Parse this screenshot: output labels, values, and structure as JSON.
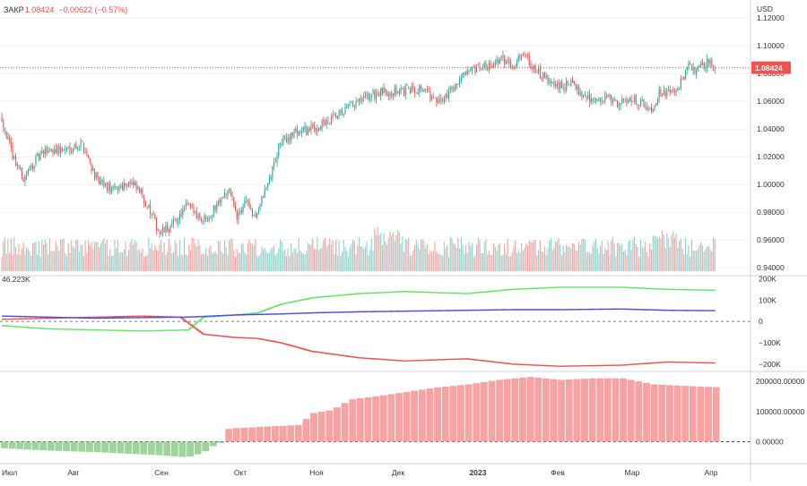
{
  "header": {
    "label": "ЗАКР",
    "close": "1.08424",
    "change": "−0.00622 (−0.57%)"
  },
  "colors": {
    "up": "#26a69a",
    "down": "#ef5350",
    "vol_up": "#8fd3cc",
    "vol_down": "#f5a3a3",
    "long_line": "#66e366",
    "short_line": "#ef5350",
    "oi_line": "#4b4be6",
    "net_positive": "#f7a3a3",
    "net_negative": "#9fd49f",
    "price_badge": "#ef5350",
    "axis_text": "#333333",
    "grid": "#f0f3fa"
  },
  "chart_data": [
    {
      "type": "candlestick",
      "currency": "USD",
      "x_labels": [
        "Июл",
        "Авг",
        "Сен",
        "Окт",
        "Ноя",
        "Дек",
        "2023",
        "Фев",
        "Мар",
        "Апр"
      ],
      "y_ticks": [
        "1.12000",
        "1.10000",
        "1.08000",
        "1.06000",
        "1.04000",
        "1.02000",
        "1.00000",
        "0.98000",
        "0.96000",
        "0.94000"
      ],
      "ylim": [
        0.935,
        1.133
      ],
      "last_price": "1.08424",
      "keypoints": [
        [
          0,
          1.048
        ],
        [
          6,
          1.024
        ],
        [
          14,
          1.004
        ],
        [
          22,
          1.018
        ],
        [
          30,
          1.025
        ],
        [
          40,
          1.025
        ],
        [
          52,
          1.03
        ],
        [
          62,
          1.002
        ],
        [
          72,
          0.996
        ],
        [
          82,
          1.002
        ],
        [
          90,
          0.994
        ],
        [
          96,
          0.98
        ],
        [
          102,
          0.965
        ],
        [
          110,
          0.97
        ],
        [
          120,
          0.985
        ],
        [
          130,
          0.975
        ],
        [
          136,
          0.98
        ],
        [
          142,
          0.992
        ],
        [
          148,
          0.995
        ],
        [
          152,
          0.975
        ],
        [
          158,
          0.99
        ],
        [
          163,
          0.975
        ],
        [
          172,
          1.0
        ],
        [
          180,
          1.03
        ],
        [
          190,
          1.038
        ],
        [
          200,
          1.04
        ],
        [
          212,
          1.045
        ],
        [
          224,
          1.055
        ],
        [
          232,
          1.06
        ],
        [
          240,
          1.065
        ],
        [
          250,
          1.067
        ],
        [
          262,
          1.068
        ],
        [
          272,
          1.07
        ],
        [
          282,
          1.058
        ],
        [
          290,
          1.068
        ],
        [
          298,
          1.078
        ],
        [
          308,
          1.083
        ],
        [
          316,
          1.087
        ],
        [
          324,
          1.09
        ],
        [
          332,
          1.087
        ],
        [
          338,
          1.096
        ],
        [
          344,
          1.083
        ],
        [
          352,
          1.075
        ],
        [
          360,
          1.07
        ],
        [
          368,
          1.073
        ],
        [
          376,
          1.065
        ],
        [
          384,
          1.06
        ],
        [
          392,
          1.062
        ],
        [
          400,
          1.058
        ],
        [
          406,
          1.063
        ],
        [
          414,
          1.058
        ],
        [
          420,
          1.055
        ],
        [
          426,
          1.068
        ],
        [
          432,
          1.065
        ],
        [
          438,
          1.07
        ],
        [
          444,
          1.085
        ],
        [
          450,
          1.083
        ],
        [
          456,
          1.088
        ],
        [
          461,
          1.084
        ]
      ],
      "volume_ylim": [
        0,
        1
      ]
    },
    {
      "type": "line",
      "y_ticks": [
        "200K",
        "100K",
        "0",
        "−100K",
        "−200K"
      ],
      "ylim": [
        -230000,
        210000
      ],
      "visible_readout": "46.223K",
      "series": [
        {
          "key": "long",
          "points": [
            [
              0,
              -20000
            ],
            [
              30,
              -35000
            ],
            [
              60,
              -40000
            ],
            [
              90,
              -45000
            ],
            [
              120,
              -40000
            ],
            [
              130,
              20000
            ],
            [
              150,
              30000
            ],
            [
              165,
              40000
            ],
            [
              180,
              80000
            ],
            [
              200,
              110000
            ],
            [
              230,
              130000
            ],
            [
              260,
              140000
            ],
            [
              300,
              130000
            ],
            [
              330,
              150000
            ],
            [
              360,
              160000
            ],
            [
              400,
              160000
            ],
            [
              430,
              150000
            ],
            [
              464,
              145000
            ]
          ]
        },
        {
          "key": "short",
          "points": [
            [
              0,
              10000
            ],
            [
              30,
              15000
            ],
            [
              60,
              20000
            ],
            [
              90,
              25000
            ],
            [
              115,
              20000
            ],
            [
              130,
              -60000
            ],
            [
              150,
              -75000
            ],
            [
              165,
              -80000
            ],
            [
              180,
              -100000
            ],
            [
              200,
              -140000
            ],
            [
              230,
              -170000
            ],
            [
              260,
              -185000
            ],
            [
              300,
              -175000
            ],
            [
              330,
              -200000
            ],
            [
              360,
              -210000
            ],
            [
              400,
              -205000
            ],
            [
              430,
              -190000
            ],
            [
              464,
              -195000
            ]
          ]
        },
        {
          "key": "oi",
          "points": [
            [
              0,
              25000
            ],
            [
              30,
              20000
            ],
            [
              60,
              15000
            ],
            [
              90,
              18000
            ],
            [
              120,
              20000
            ],
            [
              150,
              30000
            ],
            [
              180,
              35000
            ],
            [
              200,
              40000
            ],
            [
              230,
              45000
            ],
            [
              260,
              48000
            ],
            [
              300,
              52000
            ],
            [
              330,
              55000
            ],
            [
              360,
              55000
            ],
            [
              400,
              58000
            ],
            [
              430,
              52000
            ],
            [
              464,
              50000
            ]
          ]
        }
      ]
    },
    {
      "type": "bar",
      "y_ticks": [
        "200000.00000",
        "100000.00000",
        "0.00000"
      ],
      "ylim": [
        -70000,
        230000
      ],
      "keypoints": [
        [
          0,
          -22000
        ],
        [
          10,
          -25000
        ],
        [
          30,
          -30000
        ],
        [
          60,
          -35000
        ],
        [
          80,
          -40000
        ],
        [
          100,
          -45000
        ],
        [
          118,
          -52000
        ],
        [
          128,
          -38000
        ],
        [
          135,
          -15000
        ],
        [
          140,
          -5000
        ],
        [
          141,
          40000
        ],
        [
          150,
          45000
        ],
        [
          170,
          50000
        ],
        [
          190,
          55000
        ],
        [
          200,
          95000
        ],
        [
          212,
          105000
        ],
        [
          224,
          140000
        ],
        [
          240,
          150000
        ],
        [
          260,
          165000
        ],
        [
          280,
          180000
        ],
        [
          300,
          190000
        ],
        [
          320,
          205000
        ],
        [
          340,
          215000
        ],
        [
          360,
          205000
        ],
        [
          380,
          210000
        ],
        [
          400,
          210000
        ],
        [
          420,
          190000
        ],
        [
          440,
          185000
        ],
        [
          464,
          180000
        ]
      ]
    }
  ]
}
